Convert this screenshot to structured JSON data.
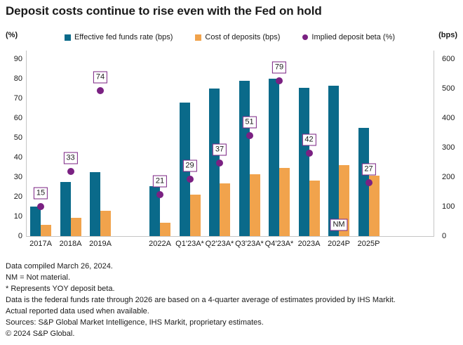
{
  "title": "Deposit costs continue to rise even with the Fed on hold",
  "axes": {
    "left_unit_label": "(%)",
    "right_unit_label": "(bps)",
    "left_ticks": [
      0,
      10,
      20,
      30,
      40,
      50,
      60,
      70,
      80,
      90
    ],
    "right_ticks": [
      0,
      100,
      200,
      300,
      400,
      500,
      600
    ]
  },
  "legend": [
    {
      "label": "Effective fed funds rate (bps)",
      "color": "#0a6a8a",
      "marker": "square"
    },
    {
      "label": "Cost of deposits (bps)",
      "color": "#f1a34c",
      "marker": "square"
    },
    {
      "label": "Implied deposit beta (%)",
      "color": "#7a2182",
      "marker": "dot"
    }
  ],
  "chart_data": {
    "type": "bar",
    "title": "Deposit costs continue to rise even with the Fed on hold",
    "xlabel": "",
    "ylabel_left": "(%)",
    "ylabel_right": "(bps)",
    "ylim_left": [
      0,
      90
    ],
    "ylim_right": [
      0,
      600
    ],
    "grid": false,
    "legend_position": "top",
    "categories": [
      "2017A",
      "2018A",
      "2019A",
      "2022A",
      "Q1'23A*",
      "Q2'23A*",
      "Q3'23A*",
      "Q4'23A*",
      "2023A",
      "2024P",
      "2025P"
    ],
    "slots": [
      0,
      1,
      2,
      4,
      5,
      6,
      7,
      8,
      9,
      10,
      11
    ],
    "series": [
      {
        "name": "Effective fed funds rate (bps)",
        "axis": "right",
        "type": "bar",
        "color": "#0a6a8a",
        "values": [
          100,
          183,
          216,
          168,
          452,
          499,
          526,
          533,
          502,
          510,
          367
        ]
      },
      {
        "name": "Cost of deposits (bps)",
        "axis": "right",
        "type": "bar",
        "color": "#f1a34c",
        "values": [
          37,
          62,
          85,
          45,
          140,
          178,
          210,
          230,
          187,
          240,
          205
        ]
      },
      {
        "name": "Implied deposit beta (%)",
        "axis": "left",
        "type": "scatter",
        "color": "#7a2182",
        "values": [
          15,
          33,
          74,
          21,
          29,
          37,
          51,
          79,
          42,
          null,
          27
        ],
        "labels": [
          "15",
          "33",
          "74",
          "21",
          "29",
          "37",
          "51",
          "79",
          "42",
          "NM",
          "27"
        ]
      }
    ]
  },
  "footnotes": [
    "Data compiled March 26, 2024.",
    "NM = Not material.",
    "* Represents YOY deposit beta.",
    "Data is the federal funds rate through 2026 are based on a 4-quarter average of estimates provided by IHS Markit.",
    "Actual reported data used when available.",
    "Sources: S&P Global Market Intelligence, IHS Markit, proprietary estimates.",
    "© 2024 S&P Global."
  ]
}
